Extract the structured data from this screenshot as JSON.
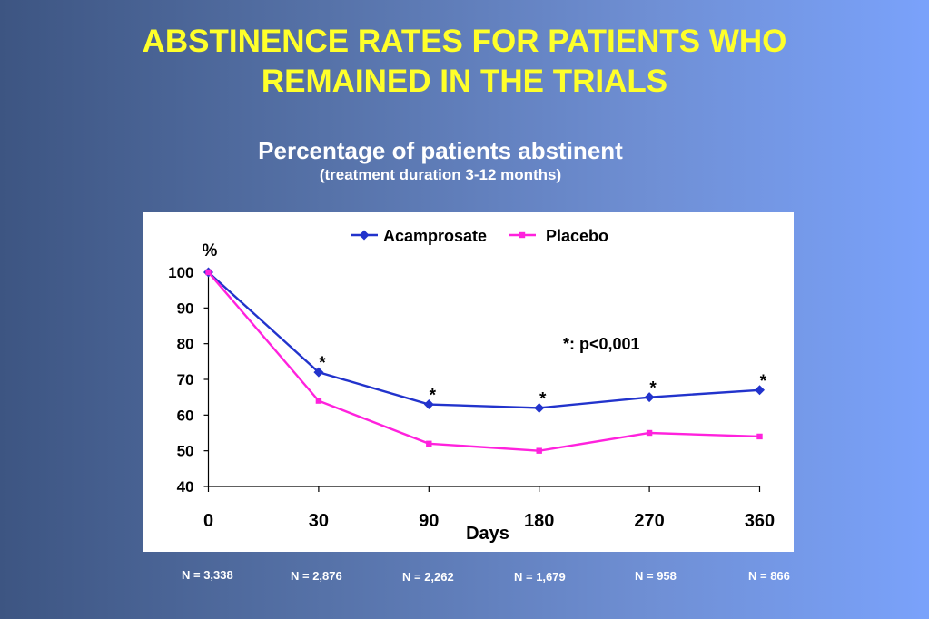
{
  "title": {
    "line1": "ABSTINENCE RATES FOR PATIENTS WHO",
    "line2": "REMAINED IN THE TRIALS"
  },
  "subtitle": {
    "main": "Percentage of patients abstinent",
    "sub": "(treatment duration 3-12 months)"
  },
  "colors": {
    "title": "#ffff2a",
    "acamprosate": "#2233cc",
    "placebo": "#ff22dd"
  },
  "chart_data": {
    "type": "line",
    "x": [
      0,
      30,
      90,
      180,
      270,
      360
    ],
    "x_tick_labels": [
      "0",
      "30",
      "90",
      "180",
      "270",
      "360"
    ],
    "xlabel": "Days",
    "ylabel": "%",
    "ylim": [
      40,
      100
    ],
    "y_ticks": [
      40,
      50,
      60,
      70,
      80,
      90,
      100
    ],
    "series": [
      {
        "name": "Acamprosate",
        "values": [
          100,
          72,
          63,
          62,
          65,
          67
        ],
        "marker": "diamond"
      },
      {
        "name": "Placebo",
        "values": [
          100,
          64,
          52,
          50,
          55,
          54
        ],
        "marker": "square"
      }
    ],
    "significance_marks": [
      "",
      "*",
      "*",
      "*",
      "*",
      "*"
    ],
    "annotation": "*: p<0,001",
    "legend_position": "top-center",
    "grid": false
  },
  "sample_sizes": [
    "N = 3,338",
    "N = 2,876",
    "N = 2,262",
    "N = 1,679",
    "N = 958",
    "N = 866"
  ]
}
